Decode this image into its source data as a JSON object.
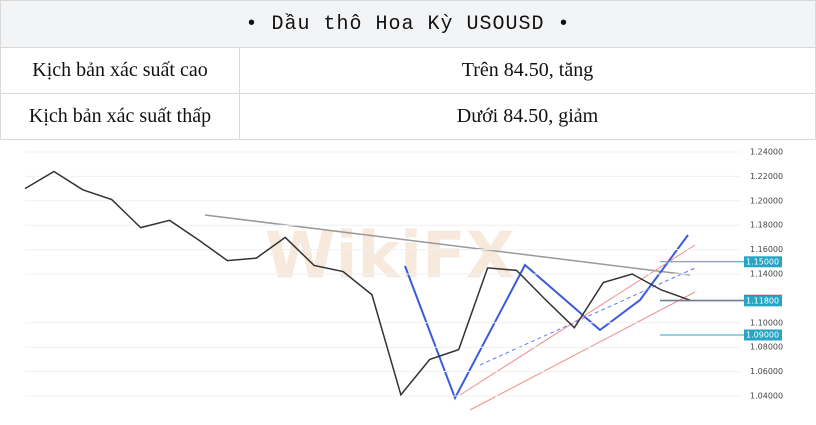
{
  "header": {
    "title": "• Dầu thô Hoa Kỳ USOUSD •"
  },
  "table": {
    "rows": [
      [
        "Kịch bản xác suất cao",
        "Trên 84.50, tăng"
      ],
      [
        "Kịch bản xác suất thấp",
        "Dưới 84.50, giảm"
      ]
    ]
  },
  "chart": {
    "type": "line",
    "watermark": "WikiFX",
    "color": "#333333",
    "ylim": [
      1.04,
      1.24
    ],
    "yticks": [
      {
        "value": 1.04,
        "label": "1.04000"
      },
      {
        "value": 1.06,
        "label": "1.06000"
      },
      {
        "value": 1.08,
        "label": "1.08000"
      },
      {
        "value": 1.1,
        "label": "1.10000"
      },
      {
        "value": 1.14,
        "label": "1.14000"
      },
      {
        "value": 1.16,
        "label": "1.16000"
      },
      {
        "value": 1.18,
        "label": "1.18000"
      },
      {
        "value": 1.2,
        "label": "1.20000"
      },
      {
        "value": 1.22,
        "label": "1.22000"
      },
      {
        "value": 1.24,
        "label": "1.24000"
      }
    ],
    "price_labels": [
      {
        "value": 1.15,
        "label": "1.15000",
        "color": "#26a6c4"
      },
      {
        "value": 1.1185,
        "label": "1.11850",
        "color": "#e53935"
      },
      {
        "value": 1.118,
        "label": "1.11800",
        "color": "#26a6c4"
      },
      {
        "value": 1.09,
        "label": "1.09000",
        "color": "#26a6c4"
      }
    ],
    "values": [
      1.21,
      1.224,
      1.209,
      1.201,
      1.178,
      1.184,
      1.168,
      1.151,
      1.153,
      1.17,
      1.147,
      1.142,
      1.123,
      1.041,
      1.07,
      1.078,
      1.145,
      1.143,
      1.119,
      1.096,
      1.133,
      1.14,
      1.127,
      1.1185
    ]
  }
}
